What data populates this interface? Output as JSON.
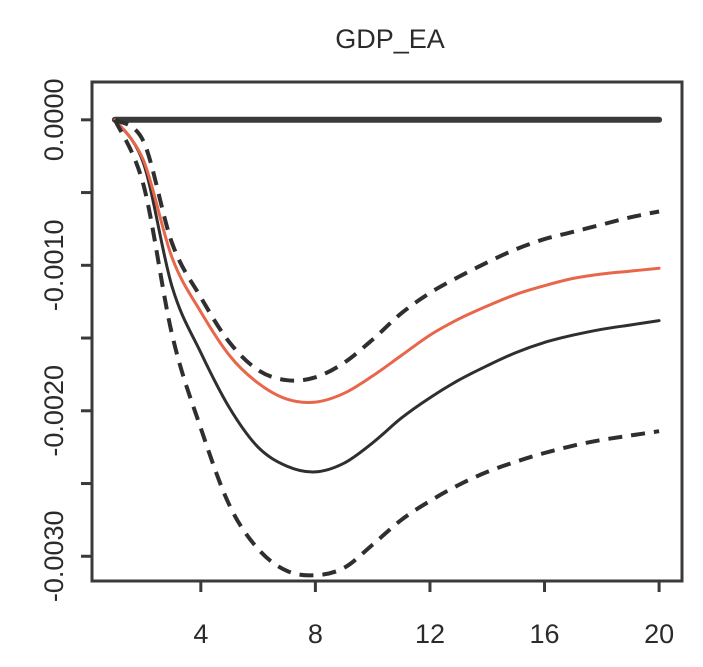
{
  "chart_data": {
    "type": "line",
    "title": "GDP_EA",
    "xlabel": "",
    "ylabel": "",
    "xlim": [
      0.2,
      20.8
    ],
    "ylim": [
      -0.00317,
      0.00026
    ],
    "xticks": [
      4,
      8,
      12,
      16,
      20
    ],
    "xtick_labels": [
      "4",
      "8",
      "12",
      "16",
      "20"
    ],
    "yticks": [
      0.0,
      -0.0005,
      -0.001,
      -0.0015,
      -0.002,
      -0.0025,
      -0.003
    ],
    "ytick_labels": [
      "0.0000",
      "",
      "-0.0010",
      "",
      "-0.0020",
      "",
      "-0.0030"
    ],
    "grid": false,
    "x": [
      1,
      2,
      3,
      4,
      5,
      6,
      7,
      8,
      9,
      10,
      11,
      12,
      13,
      14,
      15,
      16,
      17,
      18,
      19,
      20
    ],
    "series": [
      {
        "color": "#3a3a3a",
        "style": "solid",
        "values": [
          0.0,
          0.0,
          0.0,
          0.0,
          0.0,
          0.0,
          0.0,
          0.0,
          0.0,
          0.0,
          0.0,
          0.0,
          0.0,
          0.0,
          0.0,
          0.0,
          0.0,
          0.0,
          0.0,
          0.0
        ]
      },
      {
        "color": "#2f2f2f",
        "style": "solid",
        "values": [
          0.0,
          -0.0003,
          -0.00115,
          -0.0016,
          -0.00198,
          -0.00225,
          -0.00238,
          -0.00242,
          -0.00236,
          -0.00222,
          -0.00205,
          -0.00191,
          -0.00179,
          -0.00169,
          -0.0016,
          -0.00153,
          -0.00148,
          -0.00144,
          -0.00141,
          -0.00138
        ]
      },
      {
        "color": "#e8664a",
        "style": "solid",
        "values": [
          0.0,
          -0.00028,
          -0.00095,
          -0.00132,
          -0.00162,
          -0.00181,
          -0.00192,
          -0.00194,
          -0.00188,
          -0.00176,
          -0.00162,
          -0.00148,
          -0.00137,
          -0.00128,
          -0.0012,
          -0.00114,
          -0.00109,
          -0.00106,
          -0.00104,
          -0.00102
        ]
      },
      {
        "color": "#2f2f2f",
        "style": "dashed",
        "values": [
          0.0,
          -0.00015,
          -0.00085,
          -0.00122,
          -0.00153,
          -0.00172,
          -0.00179,
          -0.00177,
          -0.00167,
          -0.00151,
          -0.00133,
          -0.00119,
          -0.00108,
          -0.00098,
          -0.00089,
          -0.00082,
          -0.00077,
          -0.00072,
          -0.00067,
          -0.00063
        ]
      },
      {
        "color": "#2f2f2f",
        "style": "dashed",
        "values": [
          0.0,
          -0.00045,
          -0.00148,
          -0.00212,
          -0.00265,
          -0.00295,
          -0.0031,
          -0.00313,
          -0.00308,
          -0.00292,
          -0.00275,
          -0.00262,
          -0.00251,
          -0.00242,
          -0.00235,
          -0.00229,
          -0.00224,
          -0.0022,
          -0.00217,
          -0.00214
        ]
      }
    ]
  }
}
